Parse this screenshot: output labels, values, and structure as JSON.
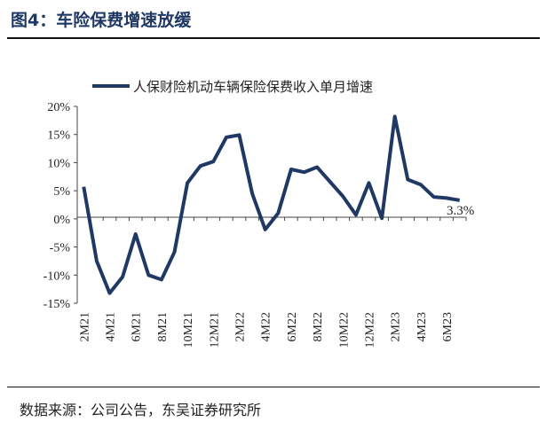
{
  "figure": {
    "title": "图4：车险保费增速放缓",
    "source": "数据来源：公司公告，东吴证券研究所"
  },
  "chart_data": {
    "type": "line",
    "x": [
      "2M21",
      "3M21",
      "4M21",
      "5M21",
      "6M21",
      "7M21",
      "8M21",
      "9M21",
      "10M21",
      "11M21",
      "12M21",
      "1M22",
      "2M22",
      "3M22",
      "4M22",
      "5M22",
      "6M22",
      "7M22",
      "8M22",
      "9M22",
      "10M22",
      "11M22",
      "12M22",
      "1M23",
      "2M23",
      "3M23",
      "4M23",
      "5M23",
      "6M23",
      "7M23"
    ],
    "x_tick_labels": [
      "2M21",
      "4M21",
      "6M21",
      "8M21",
      "10M21",
      "12M21",
      "2M22",
      "4M22",
      "6M22",
      "8M22",
      "10M22",
      "12M22",
      "2M23",
      "4M23",
      "6M23"
    ],
    "series": [
      {
        "name": "人保财险机动车辆保险保费收入单月增速",
        "color": "#1f3864",
        "values": [
          5.7,
          -7.5,
          -13.2,
          -10.3,
          -2.7,
          -10.0,
          -10.8,
          -5.9,
          6.4,
          9.4,
          10.2,
          14.5,
          14.9,
          4.5,
          -1.9,
          1.0,
          8.8,
          8.3,
          9.2,
          6.6,
          4.0,
          0.7,
          6.4,
          0.1,
          18.2,
          7.0,
          6.1,
          3.9,
          3.7,
          3.3
        ]
      }
    ],
    "y_ticks": [
      -15,
      -10,
      -5,
      0,
      5,
      10,
      15,
      20
    ],
    "y_tick_labels": [
      "-15%",
      "-10%",
      "-5%",
      "0%",
      "5%",
      "10%",
      "15%",
      "20%"
    ],
    "ylim": [
      -15,
      20
    ],
    "annotations": [
      {
        "label": "3.3%"
      }
    ],
    "legend_position": "top",
    "grid": false
  }
}
